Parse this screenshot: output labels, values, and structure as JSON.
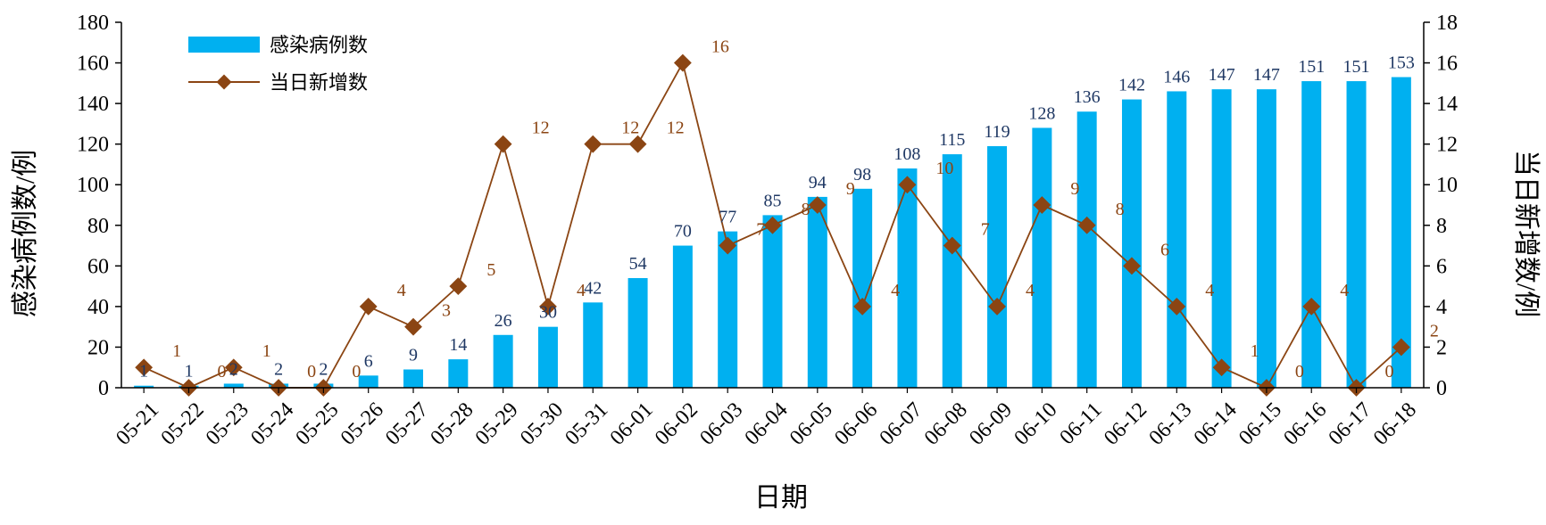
{
  "chart_data": {
    "type": "bar",
    "categories": [
      "05-21",
      "05-22",
      "05-23",
      "05-24",
      "05-25",
      "05-26",
      "05-27",
      "05-28",
      "05-29",
      "05-30",
      "05-31",
      "06-01",
      "06-02",
      "06-03",
      "06-04",
      "06-05",
      "06-06",
      "06-07",
      "06-08",
      "06-09",
      "06-10",
      "06-11",
      "06-12",
      "06-13",
      "06-14",
      "06-15",
      "06-16",
      "06-17",
      "06-18"
    ],
    "xlabel": "日期",
    "ylabel": "感染病例数/例",
    "y2label": "当日新增数/例",
    "ylim": [
      0,
      180
    ],
    "y2lim": [
      0,
      18
    ],
    "yticks": [
      "0",
      "20",
      "40",
      "60",
      "80",
      "100",
      "120",
      "140",
      "160",
      "180"
    ],
    "y2ticks": [
      "0",
      "2",
      "4",
      "6",
      "8",
      "10",
      "12",
      "14",
      "16",
      "18"
    ],
    "grid": false,
    "legend_position": "top-left",
    "series": [
      {
        "name": "感染病例数",
        "type": "bar",
        "axis": "left",
        "color": "#00b0f0",
        "label_color": "#1f3864",
        "values": [
          1,
          1,
          2,
          2,
          2,
          6,
          9,
          14,
          26,
          30,
          42,
          54,
          70,
          77,
          85,
          94,
          98,
          108,
          115,
          119,
          128,
          136,
          142,
          146,
          147,
          147,
          151,
          151,
          153
        ]
      },
      {
        "name": "当日新增数",
        "type": "line",
        "axis": "right",
        "color": "#8b4513",
        "marker": "diamond",
        "values": [
          1,
          0,
          1,
          0,
          0,
          4,
          3,
          5,
          12,
          4,
          12,
          12,
          16,
          7,
          8,
          9,
          4,
          10,
          7,
          4,
          9,
          8,
          6,
          4,
          1,
          0,
          4,
          0,
          2
        ]
      }
    ]
  }
}
